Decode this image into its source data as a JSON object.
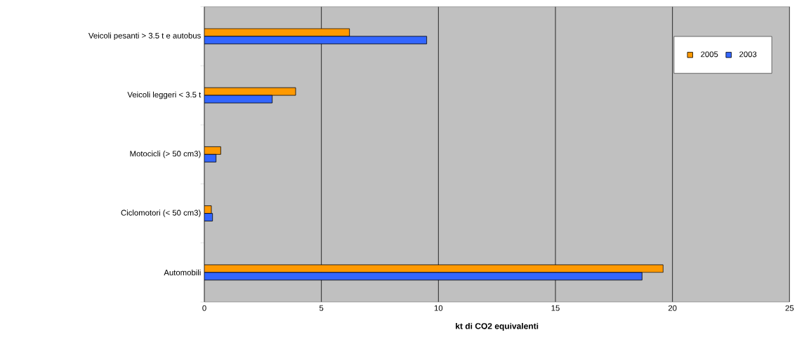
{
  "chart_data": {
    "type": "bar",
    "orientation": "horizontal",
    "xlabel": "kt di CO2 equivalenti",
    "categories": [
      "Veicoli pesanti > 3.5 t e autobus",
      "Veicoli leggeri < 3.5 t",
      "Motocicli (> 50 cm3)",
      "Ciclomotori (< 50 cm3)",
      "Automobili"
    ],
    "series": [
      {
        "name": "2005",
        "color": "#ff9900",
        "values": [
          6.2,
          3.9,
          0.7,
          0.3,
          19.6
        ]
      },
      {
        "name": "2003",
        "color": "#3366ff",
        "values": [
          9.5,
          2.9,
          0.5,
          0.35,
          18.7
        ]
      }
    ],
    "xlim": [
      0,
      25
    ],
    "xticks": [
      0,
      5,
      10,
      15,
      20,
      25
    ],
    "grid": "x",
    "legend": "top right"
  }
}
